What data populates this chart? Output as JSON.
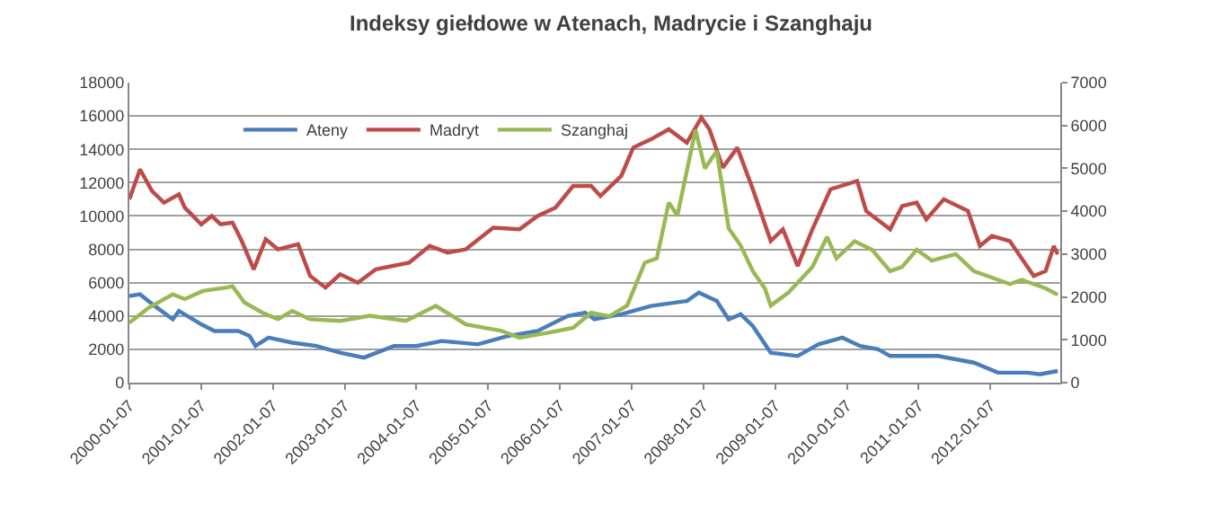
{
  "chart_data": {
    "type": "line",
    "title": "Indeksy giełdowe w Atenach, Madrycie i Szanghaju",
    "xlim": [
      "2000-01-07",
      "2012-12-28"
    ],
    "xticks": [
      "2000-01-07",
      "2001-01-07",
      "2002-01-07",
      "2003-01-07",
      "2004-01-07",
      "2005-01-07",
      "2006-01-07",
      "2007-01-07",
      "2008-01-07",
      "2009-01-07",
      "2010-01-07",
      "2011-01-07",
      "2012-01-07"
    ],
    "ylim": [
      0,
      18000
    ],
    "yticks": [
      0,
      2000,
      4000,
      6000,
      8000,
      10000,
      12000,
      14000,
      16000,
      18000
    ],
    "y2lim": [
      0,
      7000
    ],
    "y2ticks": [
      0,
      1000,
      2000,
      3000,
      4000,
      5000,
      6000,
      7000
    ],
    "grid": "y",
    "legend": "top",
    "marker": "none",
    "line_style": "solid",
    "series": [
      {
        "name": "Ateny",
        "color": "#4a7ebb",
        "x": [
          "2000-01-07",
          "2000-03-01",
          "2000-05-15",
          "2000-08-15",
          "2000-09-15",
          "2001-01-07",
          "2001-03-15",
          "2001-07-15",
          "2001-09-10",
          "2001-10-10",
          "2001-12-15",
          "2002-04-15",
          "2002-08-15",
          "2002-12-15",
          "2003-04-15",
          "2003-09-15",
          "2004-01-07",
          "2004-05-15",
          "2004-11-15",
          "2005-04-15",
          "2005-09-15",
          "2006-02-15",
          "2006-05-15",
          "2006-07-01",
          "2006-11-15",
          "2007-04-15",
          "2007-10-15",
          "2007-12-15",
          "2008-03-15",
          "2008-05-15",
          "2008-07-15",
          "2008-09-15",
          "2008-12-15",
          "2009-05-01",
          "2009-08-15",
          "2009-12-15",
          "2010-03-15",
          "2010-06-15",
          "2010-08-15",
          "2011-04-15",
          "2011-10-15",
          "2012-02-15",
          "2012-07-15",
          "2012-09-15",
          "2012-12-15"
        ],
        "values": [
          5200,
          5300,
          4600,
          3800,
          4300,
          3500,
          3100,
          3100,
          2800,
          2200,
          2700,
          2400,
          2200,
          1800,
          1500,
          2200,
          2200,
          2500,
          2300,
          2800,
          3100,
          4000,
          4200,
          3800,
          4100,
          4600,
          4900,
          5400,
          4900,
          3800,
          4100,
          3400,
          1800,
          1600,
          2300,
          2700,
          2200,
          2000,
          1600,
          1600,
          1200,
          600,
          600,
          500,
          700
        ]
      },
      {
        "name": "Madryt",
        "color": "#be4b48",
        "x": [
          "2000-01-07",
          "2000-03-01",
          "2000-05-01",
          "2000-07-01",
          "2000-09-15",
          "2000-10-15",
          "2001-01-07",
          "2001-03-01",
          "2001-04-15",
          "2001-06-15",
          "2001-08-01",
          "2001-10-01",
          "2001-12-01",
          "2002-02-01",
          "2002-05-15",
          "2002-07-15",
          "2002-10-01",
          "2002-12-15",
          "2003-03-15",
          "2003-06-15",
          "2003-12-01",
          "2004-03-15",
          "2004-06-15",
          "2004-09-15",
          "2005-02-01",
          "2005-06-15",
          "2005-09-15",
          "2005-12-15",
          "2006-03-15",
          "2006-06-15",
          "2006-08-01",
          "2006-11-15",
          "2007-01-15",
          "2007-04-15",
          "2007-07-15",
          "2007-10-15",
          "2007-12-28",
          "2008-02-07",
          "2008-04-15",
          "2008-06-28",
          "2008-09-15",
          "2008-12-15",
          "2009-02-15",
          "2009-05-01",
          "2009-07-15",
          "2009-10-15",
          "2010-02-28",
          "2010-04-15",
          "2010-08-15",
          "2010-10-15",
          "2010-12-28",
          "2011-02-15",
          "2011-05-15",
          "2011-09-15",
          "2011-11-15",
          "2012-01-15",
          "2012-04-15",
          "2012-08-15",
          "2012-10-15",
          "2012-11-25",
          "2012-12-15"
        ],
        "values": [
          11000,
          12800,
          11500,
          10800,
          11300,
          10500,
          9500,
          10000,
          9500,
          9600,
          8500,
          6800,
          8600,
          8000,
          8300,
          6400,
          5700,
          6500,
          6000,
          6800,
          7200,
          8200,
          7800,
          8000,
          9300,
          9200,
          10000,
          10500,
          11800,
          11800,
          11200,
          12400,
          14100,
          14600,
          15200,
          14400,
          15900,
          15200,
          12900,
          14100,
          11600,
          8500,
          9200,
          7000,
          9200,
          11600,
          12100,
          10300,
          9200,
          10600,
          10800,
          9800,
          11000,
          10300,
          8200,
          8800,
          8500,
          6400,
          6700,
          8200,
          7700
        ]
      },
      {
        "name": "Szanghaj",
        "color": "#98b954",
        "axis": "y2",
        "x": [
          "2000-01-07",
          "2000-04-15",
          "2000-08-15",
          "2000-10-15",
          "2001-01-15",
          "2001-05-15",
          "2001-06-15",
          "2001-08-15",
          "2001-11-15",
          "2002-02-01",
          "2002-04-15",
          "2002-07-15",
          "2002-12-15",
          "2003-05-15",
          "2003-11-15",
          "2004-04-15",
          "2004-09-15",
          "2005-03-15",
          "2005-06-15",
          "2005-11-15",
          "2006-03-15",
          "2006-06-15",
          "2006-09-15",
          "2006-12-15",
          "2007-03-15",
          "2007-05-15",
          "2007-07-15",
          "2007-08-28",
          "2007-11-28",
          "2008-01-15",
          "2008-03-15",
          "2008-05-15",
          "2008-07-15",
          "2008-09-15",
          "2008-11-15",
          "2008-12-15",
          "2009-03-15",
          "2009-07-15",
          "2009-09-28",
          "2009-11-15",
          "2010-02-15",
          "2010-05-15",
          "2010-08-15",
          "2010-10-15",
          "2010-12-28",
          "2011-03-15",
          "2011-07-15",
          "2011-10-15",
          "2012-02-15",
          "2012-04-15",
          "2012-06-15",
          "2012-10-15",
          "2012-12-15"
        ],
        "values": [
          1400,
          1750,
          2060,
          1950,
          2140,
          2220,
          2250,
          1870,
          1630,
          1480,
          1670,
          1480,
          1440,
          1560,
          1440,
          1790,
          1360,
          1210,
          1050,
          1170,
          1280,
          1630,
          1550,
          1800,
          2800,
          2900,
          4200,
          3900,
          5900,
          5000,
          5400,
          3600,
          3200,
          2600,
          2200,
          1800,
          2100,
          2700,
          3400,
          2900,
          3300,
          3100,
          2600,
          2700,
          3100,
          2850,
          3000,
          2600,
          2400,
          2300,
          2400,
          2200,
          2050
        ]
      }
    ]
  }
}
